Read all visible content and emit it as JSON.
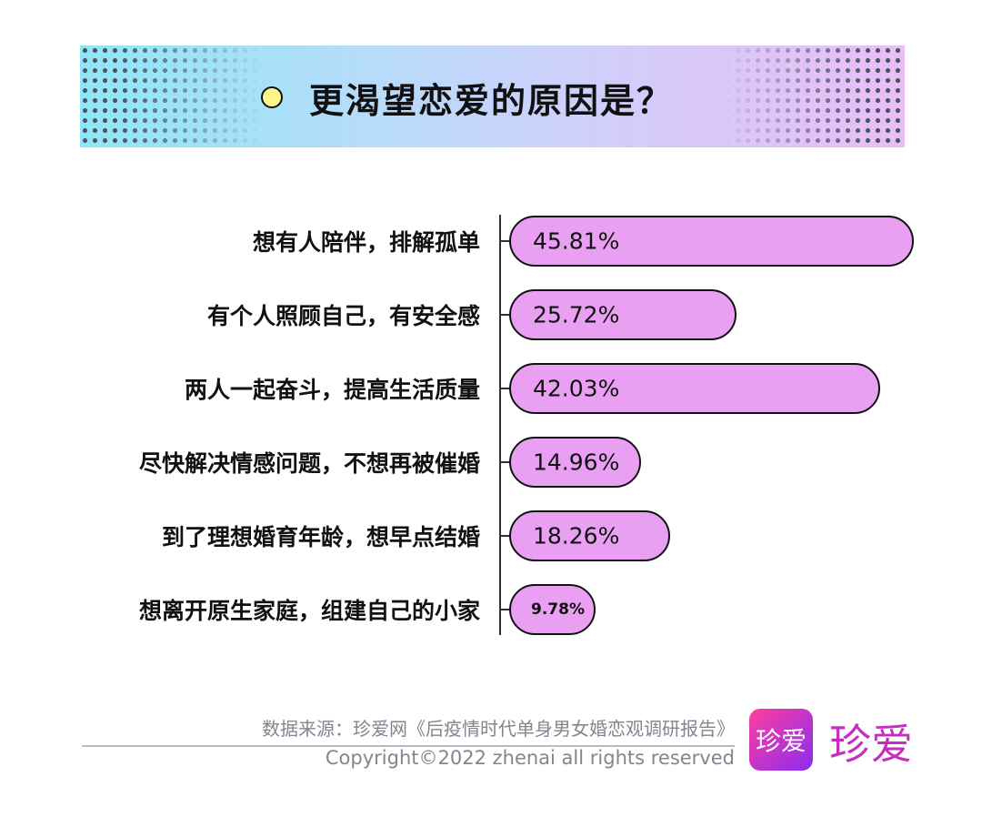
{
  "title": "更渴望恋爱的原因是？",
  "chart_data": {
    "type": "bar",
    "orientation": "horizontal",
    "title": "更渴望恋爱的原因是？",
    "categories": [
      "想有人陪伴，排解孤单",
      "有个人照顾自己，有安全感",
      "两人一起奋斗，提高生活质量",
      "尽快解决情感问题，不想再被催婚",
      "到了理想婚育年龄，想早点结婚",
      "想离开原生家庭，组建自己的小家"
    ],
    "values": [
      45.81,
      25.72,
      42.03,
      14.96,
      18.26,
      9.78
    ],
    "value_labels": [
      "45.81%",
      "25.72%",
      "42.03%",
      "14.96%",
      "18.26%",
      "9.78%"
    ],
    "unit": "%",
    "bar_color": "#e9a0f2",
    "grid": false
  },
  "footer": {
    "source": "数据来源：珍爱网《后疫情时代单身男女婚恋观调研报告》",
    "copyright": "Copyright©2022  zhenai  all rights reserved",
    "logo_icon_text": "珍爱",
    "brand_text": "珍爱"
  }
}
